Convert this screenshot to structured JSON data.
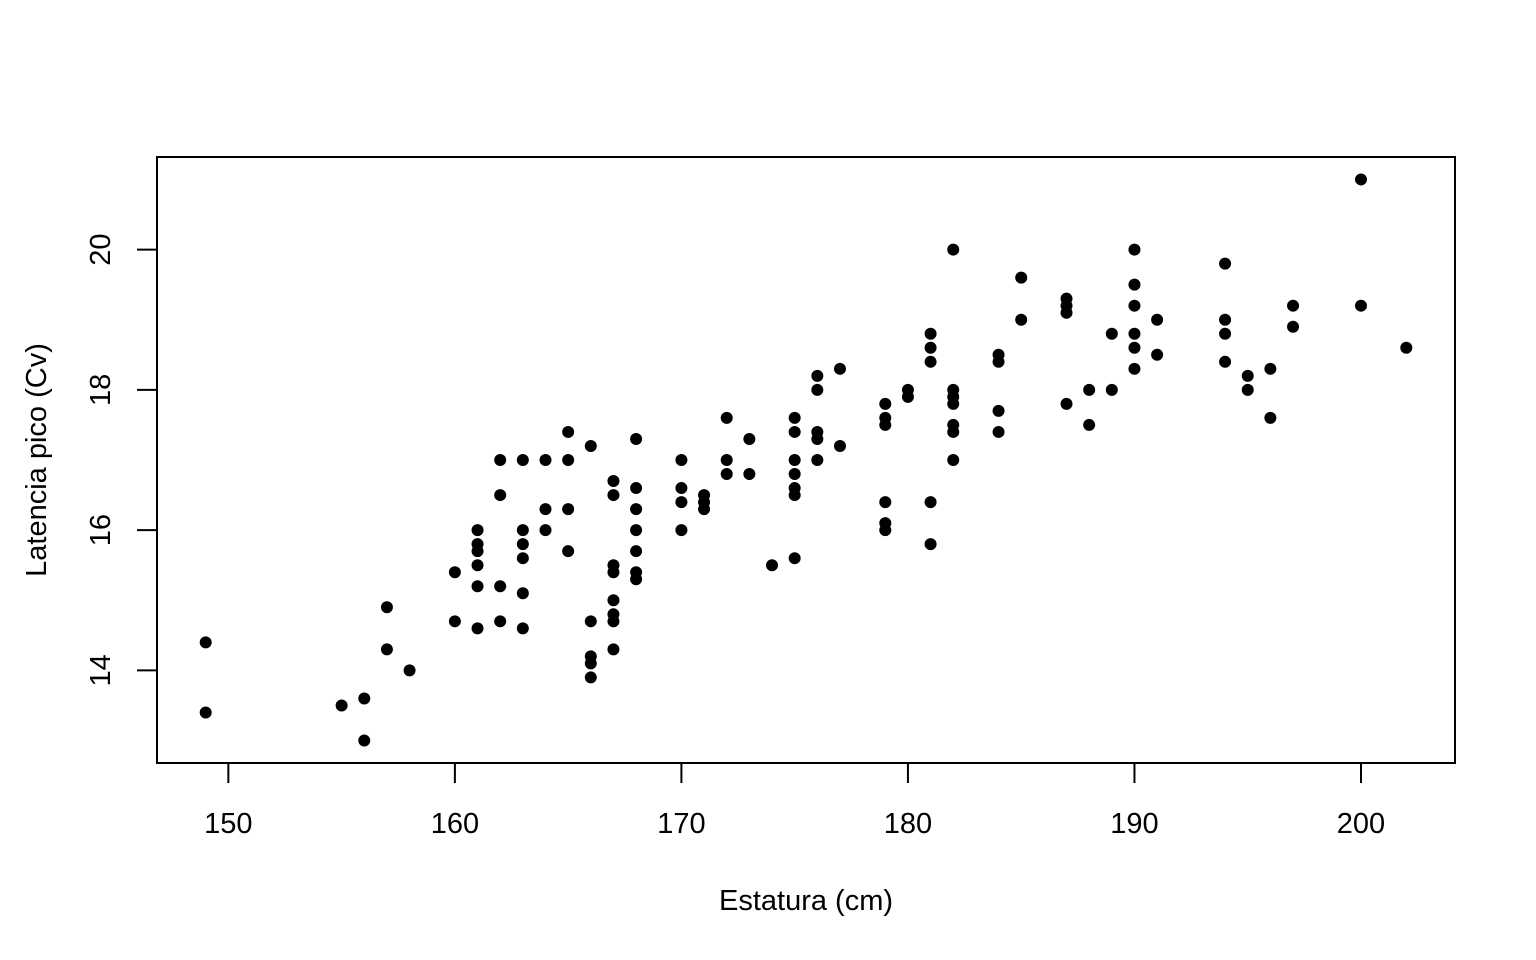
{
  "chart_data": {
    "type": "scatter",
    "title": "",
    "xlabel": "Estatura (cm)",
    "ylabel": "Latencia pico (Cv)",
    "xlim": [
      146.85,
      204.15
    ],
    "ylim": [
      12.68,
      21.32
    ],
    "xticks": [
      150,
      160,
      170,
      180,
      190,
      200
    ],
    "yticks": [
      14,
      16,
      18,
      20
    ],
    "xtick_labels": [
      "150",
      "160",
      "170",
      "180",
      "190",
      "200"
    ],
    "ytick_labels": [
      "14",
      "16",
      "18",
      "20"
    ],
    "grid": false,
    "marker_color": "#000000",
    "points": [
      [
        149,
        14.4
      ],
      [
        149,
        13.4
      ],
      [
        155,
        13.5
      ],
      [
        156,
        13.6
      ],
      [
        156,
        13.0
      ],
      [
        157,
        14.9
      ],
      [
        157,
        14.3
      ],
      [
        158,
        14.0
      ],
      [
        160,
        15.4
      ],
      [
        160,
        14.7
      ],
      [
        161,
        16.0
      ],
      [
        161,
        15.8
      ],
      [
        161,
        15.7
      ],
      [
        161,
        15.5
      ],
      [
        161,
        15.2
      ],
      [
        161,
        14.6
      ],
      [
        162,
        17.0
      ],
      [
        162,
        16.5
      ],
      [
        162,
        15.2
      ],
      [
        162,
        14.7
      ],
      [
        163,
        17.0
      ],
      [
        163,
        16.0
      ],
      [
        163,
        15.8
      ],
      [
        163,
        15.6
      ],
      [
        163,
        15.1
      ],
      [
        163,
        14.6
      ],
      [
        164,
        17.0
      ],
      [
        164,
        16.3
      ],
      [
        164,
        16.0
      ],
      [
        165,
        17.4
      ],
      [
        165,
        17.0
      ],
      [
        165,
        16.3
      ],
      [
        165,
        15.7
      ],
      [
        166,
        17.2
      ],
      [
        166,
        14.7
      ],
      [
        166,
        14.2
      ],
      [
        166,
        14.1
      ],
      [
        166,
        13.9
      ],
      [
        167,
        16.7
      ],
      [
        167,
        16.5
      ],
      [
        167,
        15.5
      ],
      [
        167,
        15.4
      ],
      [
        167,
        15.0
      ],
      [
        167,
        14.8
      ],
      [
        167,
        14.7
      ],
      [
        167,
        14.3
      ],
      [
        168,
        17.3
      ],
      [
        168,
        16.6
      ],
      [
        168,
        16.3
      ],
      [
        168,
        16.0
      ],
      [
        168,
        15.7
      ],
      [
        168,
        15.4
      ],
      [
        168,
        15.3
      ],
      [
        170,
        17.0
      ],
      [
        170,
        16.6
      ],
      [
        170,
        16.4
      ],
      [
        170,
        16.0
      ],
      [
        171,
        16.5
      ],
      [
        171,
        16.4
      ],
      [
        171,
        16.3
      ],
      [
        172,
        17.6
      ],
      [
        172,
        17.0
      ],
      [
        172,
        16.8
      ],
      [
        173,
        17.3
      ],
      [
        173,
        16.8
      ],
      [
        174,
        15.5
      ],
      [
        175,
        17.6
      ],
      [
        175,
        17.4
      ],
      [
        175,
        17.0
      ],
      [
        175,
        16.8
      ],
      [
        175,
        16.6
      ],
      [
        175,
        16.5
      ],
      [
        175,
        15.6
      ],
      [
        176,
        18.2
      ],
      [
        176,
        18.0
      ],
      [
        176,
        17.4
      ],
      [
        176,
        17.3
      ],
      [
        176,
        17.0
      ],
      [
        177,
        18.3
      ],
      [
        177,
        17.2
      ],
      [
        179,
        17.8
      ],
      [
        179,
        17.6
      ],
      [
        179,
        17.5
      ],
      [
        179,
        16.4
      ],
      [
        179,
        16.1
      ],
      [
        179,
        16.0
      ],
      [
        180,
        18.0
      ],
      [
        180,
        17.9
      ],
      [
        181,
        18.8
      ],
      [
        181,
        18.6
      ],
      [
        181,
        18.4
      ],
      [
        181,
        16.4
      ],
      [
        181,
        15.8
      ],
      [
        182,
        20.0
      ],
      [
        182,
        18.0
      ],
      [
        182,
        17.9
      ],
      [
        182,
        17.8
      ],
      [
        182,
        17.5
      ],
      [
        182,
        17.4
      ],
      [
        182,
        17.0
      ],
      [
        184,
        18.5
      ],
      [
        184,
        18.4
      ],
      [
        184,
        17.7
      ],
      [
        184,
        17.4
      ],
      [
        185,
        19.6
      ],
      [
        185,
        19.0
      ],
      [
        187,
        19.3
      ],
      [
        187,
        19.2
      ],
      [
        187,
        19.1
      ],
      [
        187,
        17.8
      ],
      [
        188,
        18.0
      ],
      [
        188,
        17.5
      ],
      [
        189,
        18.8
      ],
      [
        189,
        18.0
      ],
      [
        190,
        20.0
      ],
      [
        190,
        19.5
      ],
      [
        190,
        19.2
      ],
      [
        190,
        18.8
      ],
      [
        190,
        18.6
      ],
      [
        190,
        18.3
      ],
      [
        191,
        19.0
      ],
      [
        191,
        18.5
      ],
      [
        194,
        19.8
      ],
      [
        194,
        19.0
      ],
      [
        194,
        18.8
      ],
      [
        194,
        18.4
      ],
      [
        195,
        18.2
      ],
      [
        195,
        18.0
      ],
      [
        196,
        18.3
      ],
      [
        196,
        17.6
      ],
      [
        197,
        19.2
      ],
      [
        197,
        18.9
      ],
      [
        200,
        21.0
      ],
      [
        200,
        19.2
      ],
      [
        202,
        18.6
      ]
    ]
  }
}
